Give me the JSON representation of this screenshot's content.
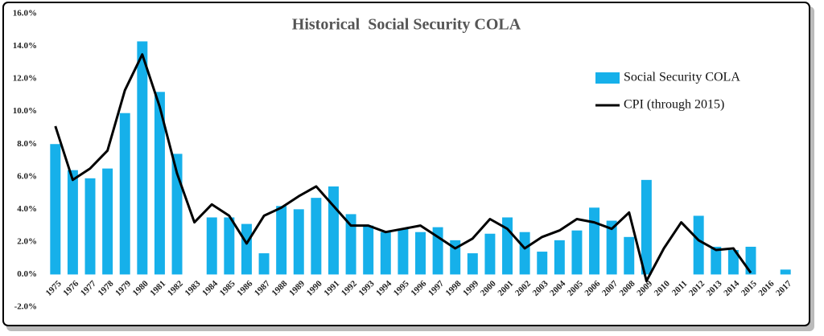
{
  "chart_data": {
    "type": "bar_line",
    "title": "Historical  Social Security COLA",
    "categories": [
      "1975",
      "1976",
      "1977",
      "1978",
      "1979",
      "1980",
      "1981",
      "1982",
      "1983",
      "1984",
      "1985",
      "1986",
      "1987",
      "1988",
      "1989",
      "1990",
      "1991",
      "1992",
      "1993",
      "1994",
      "1995",
      "1996",
      "1997",
      "1998",
      "1999",
      "2000",
      "2001",
      "2002",
      "2003",
      "2004",
      "2005",
      "2006",
      "2007",
      "2008",
      "2009",
      "2010",
      "2011",
      "2012",
      "2013",
      "2014",
      "2015",
      "2016",
      "2017"
    ],
    "series": [
      {
        "name": "Social Security COLA",
        "type": "bar",
        "color": "#16b0ea",
        "values": [
          8.0,
          6.4,
          5.9,
          6.5,
          9.9,
          14.3,
          11.2,
          7.4,
          0,
          3.5,
          3.5,
          3.1,
          1.3,
          4.2,
          4.0,
          4.7,
          5.4,
          3.7,
          3.0,
          2.6,
          2.8,
          2.6,
          2.9,
          2.1,
          1.3,
          2.5,
          3.5,
          2.6,
          1.4,
          2.1,
          2.7,
          4.1,
          3.3,
          2.3,
          5.8,
          0,
          0,
          3.6,
          1.7,
          1.5,
          1.7,
          0,
          0.3
        ]
      },
      {
        "name": "CPI (through 2015)",
        "type": "line",
        "color": "#000000",
        "values": [
          9.1,
          5.8,
          6.5,
          7.6,
          11.3,
          13.5,
          10.3,
          6.2,
          3.2,
          4.3,
          3.6,
          1.9,
          3.6,
          4.1,
          4.8,
          5.4,
          4.2,
          3.0,
          3.0,
          2.6,
          2.8,
          3.0,
          2.3,
          1.6,
          2.2,
          3.4,
          2.8,
          1.6,
          2.3,
          2.7,
          3.4,
          3.2,
          2.8,
          3.8,
          -0.4,
          1.6,
          3.2,
          2.1,
          1.5,
          1.6,
          0.1,
          null,
          null
        ]
      }
    ],
    "ylim": [
      -2,
      16
    ],
    "yticks": [
      {
        "value": -2,
        "label": "-2.0%"
      },
      {
        "value": 0,
        "label": "0.0%"
      },
      {
        "value": 2,
        "label": "2.0%"
      },
      {
        "value": 4,
        "label": "4.0%"
      },
      {
        "value": 6,
        "label": "6.0%"
      },
      {
        "value": 8,
        "label": "8.0%"
      },
      {
        "value": 10,
        "label": "10.0%"
      },
      {
        "value": 12,
        "label": "12.0%"
      },
      {
        "value": 14,
        "label": "14.0%"
      },
      {
        "value": 16,
        "label": "16.0%"
      }
    ],
    "legend": "upper right"
  }
}
